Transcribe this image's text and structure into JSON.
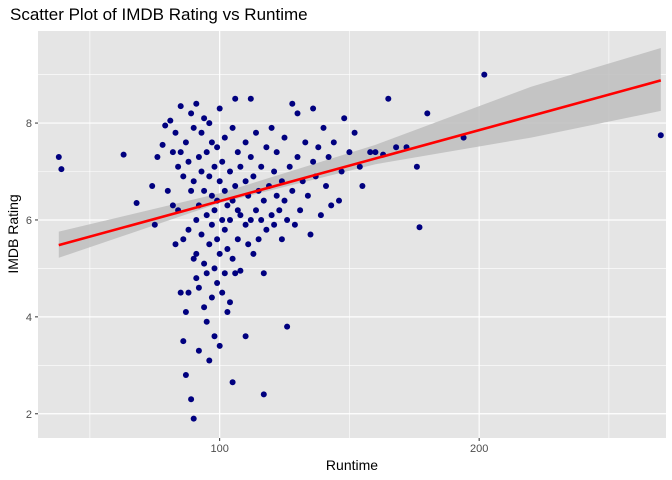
{
  "chart_data": {
    "type": "scatter",
    "title": "Scatter Plot of IMDB Rating vs Runtime",
    "xlabel": "Runtime",
    "ylabel": "IMDB Rating",
    "xlim": [
      30,
      272
    ],
    "ylim": [
      1.5,
      9.9
    ],
    "x_ticks": [
      100,
      200
    ],
    "x_minor_ticks": [
      50,
      150,
      250
    ],
    "y_ticks": [
      2,
      4,
      6,
      8
    ],
    "y_minor_ticks": [
      3,
      5,
      7,
      9
    ],
    "x_tick_labels": [
      "100",
      "200"
    ],
    "y_tick_labels": [
      "2",
      "4",
      "6",
      "8"
    ],
    "grid": true,
    "legend": "none",
    "colors": {
      "panel": "#e5e5e5",
      "grid": "#ffffff",
      "points": "#00007f",
      "trend_line": "#ff0000",
      "confidence_band": "#bebebe"
    },
    "points": [
      [
        38,
        7.3
      ],
      [
        39,
        7.05
      ],
      [
        63,
        7.35
      ],
      [
        68,
        6.35
      ],
      [
        74,
        6.7
      ],
      [
        75,
        5.9
      ],
      [
        76,
        7.3
      ],
      [
        78,
        7.55
      ],
      [
        79,
        7.95
      ],
      [
        80,
        6.6
      ],
      [
        81,
        8.05
      ],
      [
        82,
        7.4
      ],
      [
        82,
        6.3
      ],
      [
        83,
        5.5
      ],
      [
        83,
        7.8
      ],
      [
        84,
        7.1
      ],
      [
        84,
        6.2
      ],
      [
        85,
        8.35
      ],
      [
        85,
        4.5
      ],
      [
        85,
        7.4
      ],
      [
        86,
        3.5
      ],
      [
        86,
        5.6
      ],
      [
        86,
        6.9
      ],
      [
        87,
        4.1
      ],
      [
        87,
        2.8
      ],
      [
        87,
        7.6
      ],
      [
        88,
        4.5
      ],
      [
        88,
        5.8
      ],
      [
        88,
        7.2
      ],
      [
        89,
        2.3
      ],
      [
        89,
        8.2
      ],
      [
        89,
        6.6
      ],
      [
        90,
        1.9
      ],
      [
        90,
        5.2
      ],
      [
        90,
        6.8
      ],
      [
        90,
        7.9
      ],
      [
        91,
        8.4
      ],
      [
        91,
        4.8
      ],
      [
        91,
        5.3
      ],
      [
        91,
        6.0
      ],
      [
        92,
        3.3
      ],
      [
        92,
        4.6
      ],
      [
        92,
        6.3
      ],
      [
        92,
        7.3
      ],
      [
        93,
        5.7
      ],
      [
        93,
        7.0
      ],
      [
        93,
        7.8
      ],
      [
        94,
        4.2
      ],
      [
        94,
        5.1
      ],
      [
        94,
        6.6
      ],
      [
        94,
        8.1
      ],
      [
        95,
        3.9
      ],
      [
        95,
        4.9
      ],
      [
        95,
        6.1
      ],
      [
        95,
        7.4
      ],
      [
        96,
        3.1
      ],
      [
        96,
        5.5
      ],
      [
        96,
        6.9
      ],
      [
        96,
        8.0
      ],
      [
        97,
        4.4
      ],
      [
        97,
        5.9
      ],
      [
        97,
        6.5
      ],
      [
        97,
        7.6
      ],
      [
        98,
        3.6
      ],
      [
        98,
        5.0
      ],
      [
        98,
        6.2
      ],
      [
        98,
        7.1
      ],
      [
        99,
        4.7
      ],
      [
        99,
        5.6
      ],
      [
        99,
        6.4
      ],
      [
        99,
        7.5
      ],
      [
        100,
        3.4
      ],
      [
        100,
        5.3
      ],
      [
        100,
        6.8
      ],
      [
        100,
        8.3
      ],
      [
        101,
        4.5
      ],
      [
        101,
        6.0
      ],
      [
        101,
        7.2
      ],
      [
        102,
        4.9
      ],
      [
        102,
        5.8
      ],
      [
        102,
        6.6
      ],
      [
        102,
        7.7
      ],
      [
        103,
        4.1
      ],
      [
        103,
        5.4
      ],
      [
        103,
        6.3
      ],
      [
        104,
        4.3
      ],
      [
        104,
        6.0
      ],
      [
        104,
        7.0
      ],
      [
        105,
        2.65
      ],
      [
        105,
        5.2
      ],
      [
        105,
        6.4
      ],
      [
        105,
        7.9
      ],
      [
        106,
        4.9
      ],
      [
        106,
        6.7
      ],
      [
        106,
        8.5
      ],
      [
        107,
        5.6
      ],
      [
        107,
        6.2
      ],
      [
        107,
        7.4
      ],
      [
        108,
        4.95
      ],
      [
        108,
        6.1
      ],
      [
        108,
        7.1
      ],
      [
        110,
        3.6
      ],
      [
        110,
        5.9
      ],
      [
        110,
        6.8
      ],
      [
        110,
        7.6
      ],
      [
        111,
        5.5
      ],
      [
        111,
        6.5
      ],
      [
        112,
        6.0
      ],
      [
        112,
        7.3
      ],
      [
        112,
        8.5
      ],
      [
        113,
        5.3
      ],
      [
        113,
        6.9
      ],
      [
        114,
        6.2
      ],
      [
        114,
        7.8
      ],
      [
        115,
        5.6
      ],
      [
        115,
        6.6
      ],
      [
        116,
        6.0
      ],
      [
        116,
        7.1
      ],
      [
        117,
        4.9
      ],
      [
        117,
        6.4
      ],
      [
        117,
        2.4
      ],
      [
        118,
        5.8
      ],
      [
        118,
        7.5
      ],
      [
        119,
        6.7
      ],
      [
        120,
        6.1
      ],
      [
        120,
        7.9
      ],
      [
        121,
        5.9
      ],
      [
        121,
        7.0
      ],
      [
        122,
        6.5
      ],
      [
        122,
        7.4
      ],
      [
        123,
        6.2
      ],
      [
        124,
        5.6
      ],
      [
        124,
        6.8
      ],
      [
        125,
        6.4
      ],
      [
        125,
        7.7
      ],
      [
        126,
        3.8
      ],
      [
        126,
        6.0
      ],
      [
        127,
        7.1
      ],
      [
        128,
        8.4
      ],
      [
        128,
        6.6
      ],
      [
        129,
        5.9
      ],
      [
        130,
        7.3
      ],
      [
        130,
        8.2
      ],
      [
        131,
        6.2
      ],
      [
        132,
        6.8
      ],
      [
        133,
        7.6
      ],
      [
        134,
        6.5
      ],
      [
        135,
        5.7
      ],
      [
        136,
        7.2
      ],
      [
        136,
        8.3
      ],
      [
        137,
        6.9
      ],
      [
        138,
        7.5
      ],
      [
        139,
        6.1
      ],
      [
        140,
        7.9
      ],
      [
        141,
        6.7
      ],
      [
        142,
        7.3
      ],
      [
        143,
        6.3
      ],
      [
        144,
        7.6
      ],
      [
        146,
        6.4
      ],
      [
        147,
        7.0
      ],
      [
        148,
        8.1
      ],
      [
        150,
        7.4
      ],
      [
        152,
        7.8
      ],
      [
        154,
        7.1
      ],
      [
        155,
        6.7
      ],
      [
        158,
        7.4
      ],
      [
        160,
        7.4
      ],
      [
        163,
        7.35
      ],
      [
        165,
        8.5
      ],
      [
        168,
        7.5
      ],
      [
        172,
        7.5
      ],
      [
        176,
        7.1
      ],
      [
        177,
        5.85
      ],
      [
        180,
        8.2
      ],
      [
        194,
        7.7
      ],
      [
        202,
        9.0
      ],
      [
        270,
        7.75
      ]
    ],
    "trend_line": {
      "x": [
        38,
        270
      ],
      "y": [
        5.48,
        8.88
      ]
    },
    "confidence_band": {
      "x": [
        38,
        100,
        160,
        220,
        270
      ],
      "lower": [
        5.22,
        6.35,
        7.15,
        7.7,
        8.25
      ],
      "upper": [
        5.76,
        6.55,
        7.55,
        8.75,
        9.55
      ]
    }
  }
}
